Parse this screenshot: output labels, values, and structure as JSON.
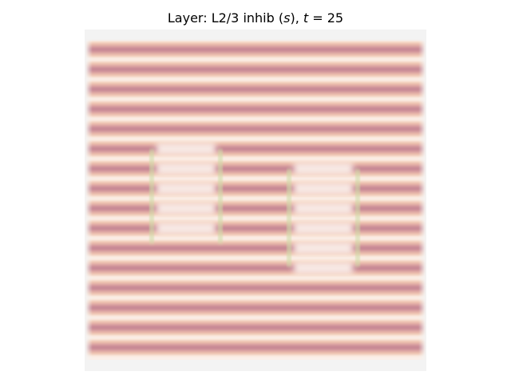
{
  "title": {
    "prefix": "Layer: L2/3 inhib (",
    "var_s": "s",
    "mid": "), ",
    "var_t": "t",
    "eq": " = ",
    "t_value": "25"
  },
  "image": {
    "kind": "activity heatmap (imshow)",
    "colors": {
      "background": "#f3f3f3",
      "stripe_core": "#b87a8c",
      "stripe_mid": "#d99aa0",
      "stripe_edge": "#f2c9b0",
      "gap": "#fbeee6",
      "patch": "#fdf3ec",
      "patch_edge": "#cfdca8"
    },
    "stripe_count": 16,
    "patch_count": 2
  }
}
